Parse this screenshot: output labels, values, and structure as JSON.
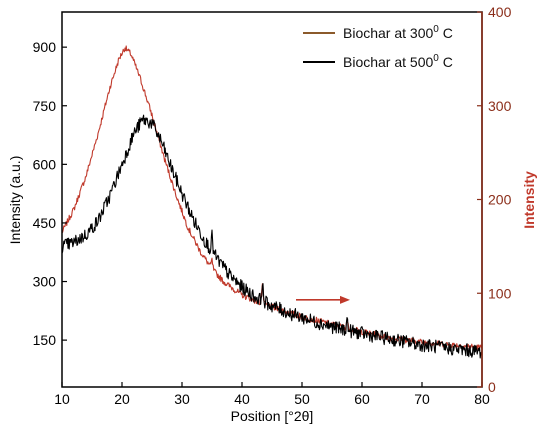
{
  "chart_data": {
    "type": "line",
    "title": "",
    "xlabel": "Position [°2θ]",
    "ylabel_left": "Intensity (a.u.)",
    "ylabel_right": "Intensity",
    "xlim": [
      10,
      80
    ],
    "ylim_left": [
      30,
      990
    ],
    "ylim_right": [
      0,
      400
    ],
    "x_ticks": [
      10,
      20,
      30,
      40,
      50,
      60,
      70,
      80
    ],
    "y_left_ticks": [
      150,
      300,
      450,
      600,
      750,
      900
    ],
    "y_right_ticks": [
      0,
      100,
      200,
      300,
      400
    ],
    "grid": false,
    "legend_position": "top-right",
    "series": [
      {
        "name": "Biochar at 300° C",
        "axis": "right",
        "color": "#c0392b",
        "legend_color": "#8b5a2b",
        "points": [
          [
            10,
            165
          ],
          [
            12,
            190
          ],
          [
            14,
            225
          ],
          [
            16,
            270
          ],
          [
            18,
            320
          ],
          [
            19.5,
            350
          ],
          [
            20.5,
            362
          ],
          [
            21.5,
            355
          ],
          [
            23,
            330
          ],
          [
            25,
            290
          ],
          [
            27,
            245
          ],
          [
            29,
            205
          ],
          [
            31,
            170
          ],
          [
            33,
            145
          ],
          [
            35,
            126
          ],
          [
            37,
            112
          ],
          [
            40,
            98
          ],
          [
            43,
            90
          ],
          [
            46,
            83
          ],
          [
            50,
            75
          ],
          [
            55,
            67
          ],
          [
            60,
            59
          ],
          [
            65,
            52
          ],
          [
            70,
            48
          ],
          [
            75,
            45
          ],
          [
            80,
            42
          ]
        ],
        "peaks": [
          [
            35,
            135
          ],
          [
            43.4,
            110
          ],
          [
            57.5,
            70
          ]
        ]
      },
      {
        "name": "Biochar at 500° C",
        "axis": "left",
        "color": "#000000",
        "legend_color": "#000000",
        "points": [
          [
            10,
            390
          ],
          [
            12,
            400
          ],
          [
            14,
            420
          ],
          [
            16,
            455
          ],
          [
            18,
            520
          ],
          [
            20,
            600
          ],
          [
            22,
            680
          ],
          [
            23.5,
            715
          ],
          [
            25,
            705
          ],
          [
            26.5,
            660
          ],
          [
            28,
            600
          ],
          [
            30,
            525
          ],
          [
            32,
            455
          ],
          [
            34,
            400
          ],
          [
            36,
            355
          ],
          [
            38,
            315
          ],
          [
            40,
            285
          ],
          [
            42,
            262
          ],
          [
            45,
            238
          ],
          [
            48,
            218
          ],
          [
            52,
            198
          ],
          [
            56,
            180
          ],
          [
            60,
            167
          ],
          [
            65,
            152
          ],
          [
            70,
            138
          ],
          [
            75,
            128
          ],
          [
            80,
            120
          ]
        ],
        "peaks": [
          [
            35,
            415
          ],
          [
            43.4,
            290
          ],
          [
            57.5,
            200
          ]
        ]
      }
    ],
    "annotations": [
      {
        "type": "arrow",
        "from": [
          49,
          93
        ],
        "to": [
          58,
          93
        ],
        "axis": "right",
        "color": "#c0392b"
      }
    ]
  },
  "legend": {
    "series1_label_base": "Biochar at 300",
    "series1_label_sup": "0",
    "series1_label_tail": " C",
    "series2_label_base": "Biochar at 500",
    "series2_label_sup": "0",
    "series2_label_tail": " C"
  },
  "colors": {
    "right_axis": "#8b2e1a",
    "right_axis_title": "#c0392b",
    "frame": "#000000"
  }
}
